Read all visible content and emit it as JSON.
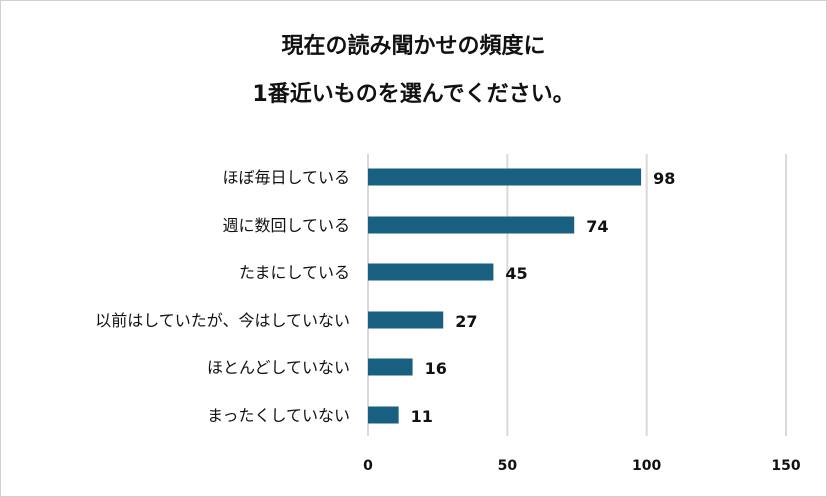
{
  "chart_data": {
    "type": "bar",
    "orientation": "horizontal",
    "title_lines": [
      "現在の読み聞かせの頻度に",
      "1番近いものを選んでください。"
    ],
    "categories": [
      "ほぼ毎日している",
      "週に数回している",
      "たまにしている",
      "以前はしていたが、今はしていない",
      "ほとんどしていない",
      "まったくしていない"
    ],
    "values": [
      98,
      74,
      45,
      27,
      16,
      11
    ],
    "xlim": [
      0,
      150
    ],
    "xticks": [
      0,
      50,
      100,
      150
    ],
    "grid": true,
    "data_labels": true,
    "colors": {
      "bar": "#185f80",
      "grid": "#d9d9d9"
    }
  }
}
